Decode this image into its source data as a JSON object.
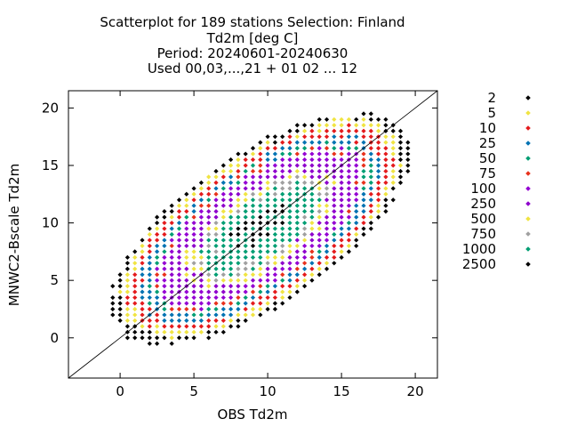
{
  "chart_data": {
    "type": "scatter",
    "title_lines": [
      "Scatterplot for  189 stations Selection: Finland",
      "Td2m [deg C]",
      "Period: 20240601-20240630",
      "Used 00,03,...,21 + 01 02 ... 12"
    ],
    "xlabel": "OBS Td2m",
    "ylabel": "MNWC2-Bscale Td2m",
    "xlim": [
      -3.5,
      21.5
    ],
    "ylim": [
      -3.5,
      21.5
    ],
    "xticks": [
      "0",
      "5",
      "10",
      "15",
      "20"
    ],
    "yticks": [
      "0",
      "5",
      "10",
      "15",
      "20"
    ],
    "diagonal_reference_line": true,
    "legend_placement": "right",
    "bin_size_deg": 0.5,
    "density_model": {
      "center": [
        9.5,
        9.5
      ],
      "sd_along_diagonal": 3.4,
      "sd_across_diagonal": 1.55,
      "peak_count": 3000
    },
    "series": [
      {
        "name": "2",
        "min_count": 2,
        "color": "#000000"
      },
      {
        "name": "5",
        "min_count": 5,
        "color": "#f0e442"
      },
      {
        "name": "10",
        "min_count": 10,
        "color": "#e41a1c"
      },
      {
        "name": "25",
        "min_count": 25,
        "color": "#0072b2"
      },
      {
        "name": "50",
        "min_count": 50,
        "color": "#009e73"
      },
      {
        "name": "75",
        "min_count": 75,
        "color": "#e8321c"
      },
      {
        "name": "100",
        "min_count": 100,
        "color": "#9400d3"
      },
      {
        "name": "250",
        "min_count": 250,
        "color": "#8e00cc"
      },
      {
        "name": "500",
        "min_count": 500,
        "color": "#f0e442"
      },
      {
        "name": "750",
        "min_count": 750,
        "color": "#a0a0a0"
      },
      {
        "name": "1000",
        "min_count": 1000,
        "color": "#009e73"
      },
      {
        "name": "2500",
        "min_count": 2500,
        "color": "#000000"
      }
    ]
  }
}
